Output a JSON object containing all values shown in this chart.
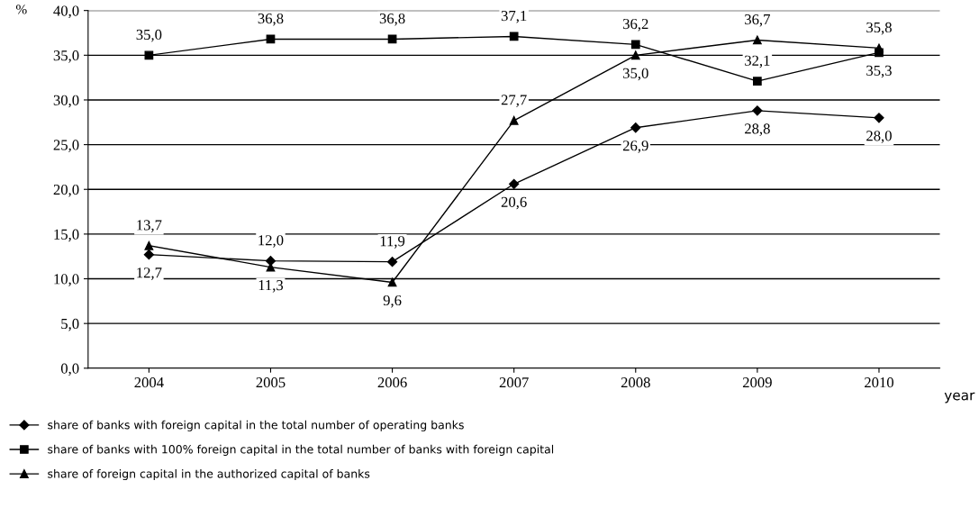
{
  "chart_data": {
    "type": "line",
    "xlabel": "year",
    "ylabel": "%",
    "categories": [
      "2004",
      "2005",
      "2006",
      "2007",
      "2008",
      "2009",
      "2010"
    ],
    "series": [
      {
        "name": "share of banks with foreign capital in the total number of operating banks",
        "color": "#000000",
        "marker": "diamond",
        "values": [
          12.7,
          12.0,
          11.9,
          20.6,
          26.9,
          28.8,
          28.0
        ],
        "value_labels": [
          "12,7",
          "12,0",
          "11,9",
          "20,6",
          "26,9",
          "28,8",
          "28,0"
        ]
      },
      {
        "name": "share of banks with 100% foreign capital in the total number of banks with foreign capital",
        "color": "#000000",
        "marker": "square",
        "values": [
          35.0,
          36.8,
          36.8,
          37.1,
          36.2,
          32.1,
          35.3
        ],
        "value_labels": [
          "35,0",
          "36,8",
          "36,8",
          "37,1",
          "36,2",
          "32,1",
          "35,3"
        ]
      },
      {
        "name": "share of foreign capital in the authorized capital of banks",
        "color": "#000000",
        "marker": "triangle",
        "values": [
          13.7,
          11.3,
          9.6,
          27.7,
          35.0,
          36.7,
          35.8
        ],
        "value_labels": [
          "13,7",
          "11,3",
          "9,6",
          "27,7",
          "35,0",
          "36,7",
          "35,8"
        ]
      }
    ],
    "ylim": [
      0,
      40
    ],
    "yticks": [
      {
        "value": 0,
        "label": "0,0"
      },
      {
        "value": 5,
        "label": "5,0"
      },
      {
        "value": 10,
        "label": "10,0"
      },
      {
        "value": 15,
        "label": "15,0"
      },
      {
        "value": 20,
        "label": "20,0"
      },
      {
        "value": 25,
        "label": "25,0"
      },
      {
        "value": 30,
        "label": "30,0"
      },
      {
        "value": 35,
        "label": "35,0"
      },
      {
        "value": 40,
        "label": "40,0"
      }
    ],
    "grid": "y",
    "legend": "bottom",
    "line_style": "solid"
  }
}
